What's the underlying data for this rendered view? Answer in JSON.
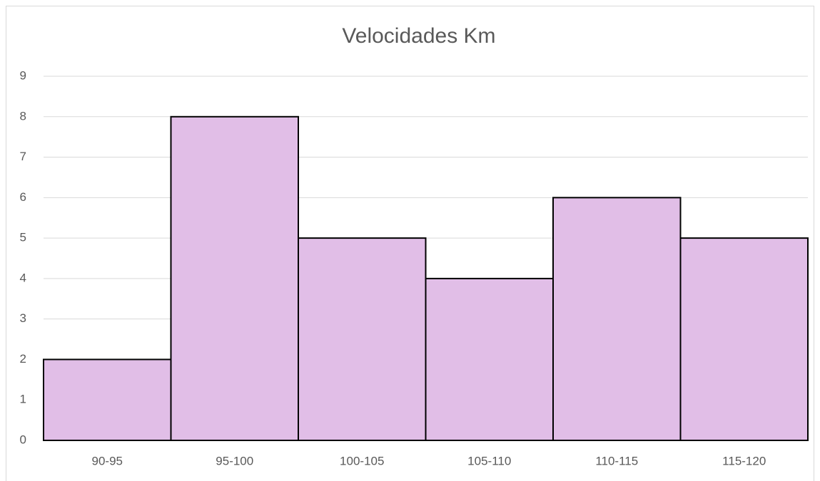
{
  "chart_data": {
    "type": "bar",
    "title": "Velocidades Km",
    "categories": [
      "90-95",
      "95-100",
      "100-105",
      "105-110",
      "110-115",
      "115-120"
    ],
    "values": [
      2,
      8,
      5,
      4,
      6,
      5
    ],
    "color": "#e1bee7",
    "ylim": [
      0,
      9
    ],
    "yticks": [
      0,
      1,
      2,
      3,
      4,
      5,
      6,
      7,
      8,
      9
    ],
    "grid": true
  }
}
